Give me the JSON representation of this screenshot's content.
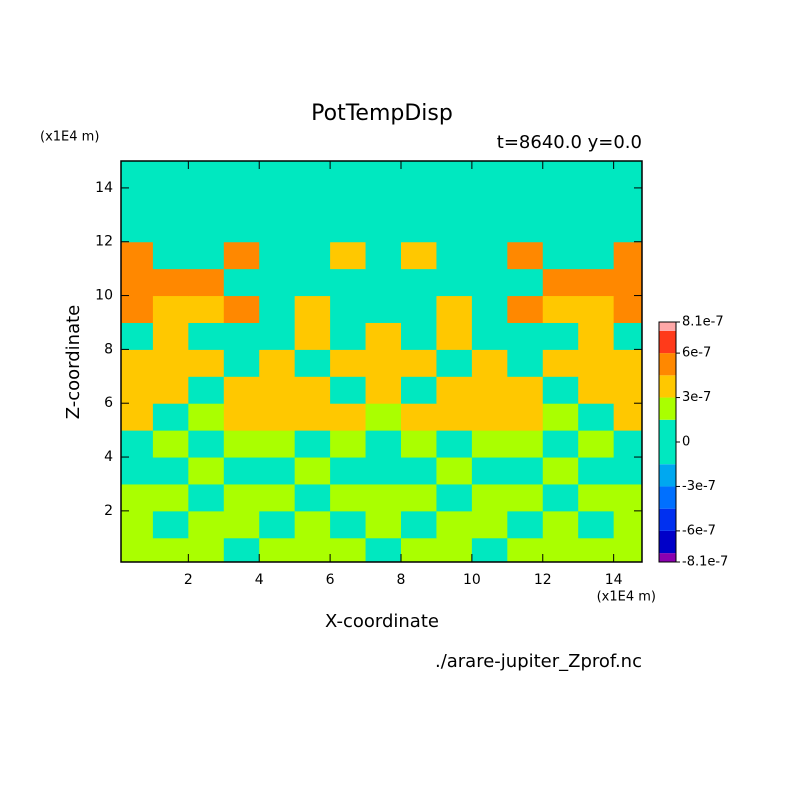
{
  "chart_data": {
    "type": "contour",
    "title": "PotTempDisp",
    "subtitle": "t=8640.0 y=0.0",
    "xlabel": "X-coordinate",
    "ylabel": "Z-coordinate",
    "x_unit": "(x1E4 m)",
    "y_unit": "(x1E4 m)",
    "source": "./arare-jupiter_Zprof.nc",
    "x": [
      0.5,
      1.5,
      2.5,
      3.5,
      4.5,
      5.5,
      6.5,
      7.5,
      8.5,
      9.5,
      10.5,
      11.5,
      12.5,
      13.5,
      14.5
    ],
    "z": [
      0.5,
      1.5,
      2.5,
      3.5,
      4.5,
      5.5,
      6.5,
      7.5,
      8.5,
      9.5,
      10.5,
      11.5,
      12.5,
      13.5,
      14.5
    ],
    "values": [
      [
        2e-07,
        2e-07,
        2e-07,
        0,
        2e-07,
        2e-07,
        2e-07,
        0,
        2e-07,
        2e-07,
        0,
        2e-07,
        2e-07,
        2e-07,
        2e-07
      ],
      [
        2e-07,
        0,
        2e-07,
        2e-07,
        0,
        2e-07,
        0,
        2e-07,
        0,
        2e-07,
        2e-07,
        0,
        2e-07,
        0,
        2e-07
      ],
      [
        2e-07,
        2e-07,
        0,
        2e-07,
        2e-07,
        0,
        2e-07,
        2e-07,
        2e-07,
        0,
        2e-07,
        2e-07,
        0,
        2e-07,
        2e-07
      ],
      [
        0,
        0,
        2e-07,
        0,
        0,
        2e-07,
        0,
        0,
        0,
        2e-07,
        0,
        0,
        2e-07,
        0,
        0
      ],
      [
        0,
        2e-07,
        0,
        2e-07,
        2e-07,
        0,
        2e-07,
        0,
        2e-07,
        0,
        2e-07,
        2e-07,
        0,
        2e-07,
        0
      ],
      [
        4e-07,
        0,
        2e-07,
        4e-07,
        4e-07,
        4e-07,
        4e-07,
        2e-07,
        4e-07,
        4e-07,
        4e-07,
        4e-07,
        2e-07,
        0,
        4e-07
      ],
      [
        4e-07,
        4e-07,
        0,
        4e-07,
        4e-07,
        4e-07,
        0,
        4e-07,
        0,
        4e-07,
        4e-07,
        4e-07,
        0,
        4e-07,
        4e-07
      ],
      [
        4e-07,
        4e-07,
        4e-07,
        0,
        4e-07,
        0,
        4e-07,
        4e-07,
        4e-07,
        0,
        4e-07,
        0,
        4e-07,
        4e-07,
        4e-07
      ],
      [
        0,
        4e-07,
        0,
        0,
        0,
        4e-07,
        0,
        4e-07,
        0,
        4e-07,
        0,
        0,
        0,
        4e-07,
        0
      ],
      [
        5e-07,
        4e-07,
        4e-07,
        5e-07,
        0,
        4e-07,
        0,
        0,
        0,
        4e-07,
        0,
        5e-07,
        4e-07,
        4e-07,
        5e-07
      ],
      [
        5e-07,
        5e-07,
        5e-07,
        0,
        0,
        0,
        0,
        0,
        0,
        0,
        0,
        0,
        5e-07,
        5e-07,
        5e-07
      ],
      [
        5e-07,
        0,
        0,
        5e-07,
        0,
        0,
        4e-07,
        0,
        4e-07,
        0,
        0,
        5e-07,
        0,
        0,
        5e-07
      ],
      [
        0,
        0,
        0,
        0,
        0,
        0,
        0,
        0,
        0,
        0,
        0,
        0,
        0,
        0,
        0
      ],
      [
        0,
        0,
        0,
        0,
        0,
        0,
        0,
        0,
        0,
        0,
        0,
        0,
        0,
        0,
        0
      ],
      [
        0,
        0,
        0,
        0,
        0,
        0,
        0,
        0,
        0,
        0,
        0,
        0,
        0,
        0,
        0
      ]
    ],
    "levels": [
      -8.1e-07,
      -7.5e-07,
      -6e-07,
      -4.5e-07,
      -3e-07,
      -1.5e-07,
      1.5e-07,
      3e-07,
      4.5e-07,
      6e-07,
      7.5e-07,
      8.1e-07
    ],
    "colors": [
      "#8a00b0",
      "#0000c8",
      "#0030f0",
      "#0070ff",
      "#00a8f0",
      "#00e8c0",
      "#aaff00",
      "#ffc800",
      "#ff8800",
      "#ff3a1a",
      "#ffa8a8"
    ],
    "colorbar_ticks": [
      -8.1e-07,
      -6e-07,
      -3e-07,
      0,
      3e-07,
      6e-07,
      8.1e-07
    ],
    "xlim": [
      0.1,
      14.8
    ],
    "ylim": [
      0.1,
      15
    ],
    "xticks": [
      2,
      4,
      6,
      8,
      10,
      12,
      14
    ],
    "yticks": [
      2,
      4,
      6,
      8,
      10,
      12,
      14
    ]
  }
}
